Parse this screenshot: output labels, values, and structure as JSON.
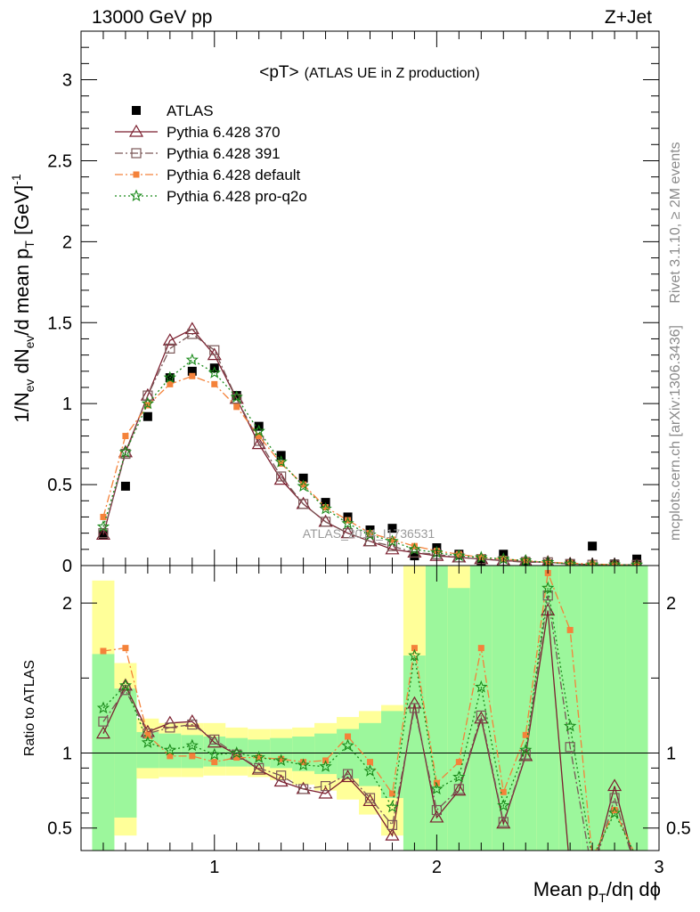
{
  "header": {
    "left": "13000 GeV pp",
    "right": "Z+Jet"
  },
  "side_labels": {
    "top": "Rivet 3.1.10, ≥ 2M events",
    "bottom": "mcplots.cern.ch [arXiv:1306.3436]"
  },
  "watermark": "ATLAS_2014_I1736531",
  "chart_data": [
    {
      "type": "scatter",
      "panel": "main",
      "title_main": "<pT>",
      "title_sub": "(ATLAS UE in Z production)",
      "ylabel_text": "1/N",
      "ylabel_sub1": "ev",
      "ylabel_mid": " dN",
      "ylabel_sub2": "ev",
      "ylabel_mid2": "/d mean p",
      "ylabel_sub3": "T",
      "ylabel_unit": " [GeV]",
      "ylabel_sup": "-1",
      "xlim": [
        0.4,
        3.0
      ],
      "ylim": [
        0,
        3.3
      ],
      "y_ticks": [
        0,
        0.5,
        1,
        1.5,
        2,
        2.5,
        3
      ],
      "y_tick_labels": [
        "0",
        "0.5",
        "1",
        "1.5",
        "2",
        "2.5",
        "3"
      ],
      "x": [
        0.5,
        0.6,
        0.7,
        0.8,
        0.9,
        1.0,
        1.1,
        1.2,
        1.3,
        1.4,
        1.5,
        1.6,
        1.7,
        1.8,
        1.9,
        2.0,
        2.1,
        2.2,
        2.3,
        2.4,
        2.5,
        2.6,
        2.7,
        2.8,
        2.9
      ],
      "series": [
        {
          "name": "ATLAS",
          "color": "#000000",
          "marker": "filled-square",
          "values": [
            0.19,
            0.49,
            0.92,
            1.16,
            1.2,
            1.22,
            1.05,
            0.86,
            0.68,
            0.54,
            0.39,
            0.3,
            0.22,
            0.23,
            0.06,
            0.11,
            0.07,
            0.03,
            0.07,
            0.025,
            0.01,
            0.01,
            0.12,
            0.01,
            0.04
          ]
        },
        {
          "name": "Pythia 6.428 370",
          "color": "#7b1f2f",
          "marker": "open-triangle",
          "dash": "",
          "values": [
            0.19,
            0.7,
            1.05,
            1.39,
            1.46,
            1.3,
            1.03,
            0.75,
            0.53,
            0.38,
            0.27,
            0.2,
            0.15,
            0.1,
            0.08,
            0.06,
            0.05,
            0.04,
            0.03,
            0.025,
            0.02,
            0.01,
            0.005,
            0.005,
            0.004
          ]
        },
        {
          "name": "Pythia 6.428 391",
          "color": "#7a5757",
          "marker": "open-square",
          "dash": "9 3 2 3",
          "values": [
            0.2,
            0.69,
            1.05,
            1.34,
            1.43,
            1.33,
            1.03,
            0.77,
            0.55,
            0.38,
            0.27,
            0.2,
            0.15,
            0.12,
            0.08,
            0.07,
            0.05,
            0.04,
            0.03,
            0.02,
            0.02,
            0.01,
            0.005,
            0.005,
            0.004
          ]
        },
        {
          "name": "Pythia 6.428 default",
          "color": "#f4823a",
          "marker": "filled-square-small",
          "dash": "9 3 2 3",
          "values": [
            0.3,
            0.8,
            0.99,
            1.12,
            1.17,
            1.12,
            0.98,
            0.8,
            0.63,
            0.5,
            0.36,
            0.28,
            0.2,
            0.16,
            0.12,
            0.09,
            0.07,
            0.05,
            0.04,
            0.03,
            0.02,
            0.015,
            0.01,
            0.005,
            0.004
          ]
        },
        {
          "name": "Pythia 6.428 pro-q2o",
          "color": "#1a8a1a",
          "marker": "open-star",
          "dash": "2 3",
          "values": [
            0.24,
            0.7,
            1.0,
            1.16,
            1.27,
            1.19,
            1.04,
            0.83,
            0.64,
            0.49,
            0.35,
            0.26,
            0.19,
            0.15,
            0.1,
            0.08,
            0.06,
            0.05,
            0.04,
            0.03,
            0.02,
            0.01,
            0.005,
            0.005,
            0.004
          ]
        }
      ]
    },
    {
      "type": "line",
      "panel": "ratio",
      "ylabel": "Ratio to ATLAS",
      "xlabel_text": "Mean p",
      "xlabel_sub": "T",
      "xlabel_rest": "/dη dϕ",
      "xlim": [
        0.4,
        3.0
      ],
      "ylim": [
        0.35,
        2.25
      ],
      "x_ticks": [
        1,
        2,
        3
      ],
      "x_tick_labels": [
        "1",
        "2",
        "3"
      ],
      "y_ticks": [
        0.5,
        1,
        2
      ],
      "y_tick_labels": [
        "0.5",
        "1",
        "2"
      ],
      "x": [
        0.5,
        0.6,
        0.7,
        0.8,
        0.9,
        1.0,
        1.1,
        1.2,
        1.3,
        1.4,
        1.5,
        1.6,
        1.7,
        1.8,
        1.9,
        2.0,
        2.1,
        2.2,
        2.3,
        2.4,
        2.5,
        2.6,
        2.7,
        2.8,
        2.9
      ],
      "band_yellow": [
        [
          0.35,
          2.15
        ],
        [
          0.45,
          1.6
        ],
        [
          0.83,
          1.23
        ],
        [
          0.84,
          1.2
        ],
        [
          0.84,
          1.2
        ],
        [
          0.85,
          1.2
        ],
        [
          0.85,
          1.17
        ],
        [
          0.84,
          1.16
        ],
        [
          0.82,
          1.16
        ],
        [
          0.79,
          1.17
        ],
        [
          0.75,
          1.2
        ],
        [
          0.69,
          1.24
        ],
        [
          0.59,
          1.28
        ],
        [
          0.45,
          1.32
        ],
        [
          0.35,
          2.25
        ],
        [
          0.35,
          2.25
        ],
        [
          0.35,
          2.25
        ],
        [
          0.35,
          2.25
        ],
        [
          0.35,
          2.25
        ],
        [
          0.35,
          2.25
        ],
        [
          0.35,
          2.25
        ],
        [
          0.35,
          2.25
        ],
        [
          0.35,
          2.25
        ],
        [
          0.35,
          2.25
        ],
        [
          0.35,
          2.25
        ]
      ],
      "band_green": [
        [
          0.35,
          1.66
        ],
        [
          0.57,
          1.43
        ],
        [
          0.9,
          1.14
        ],
        [
          0.9,
          1.13
        ],
        [
          0.9,
          1.12
        ],
        [
          0.91,
          1.11
        ],
        [
          0.91,
          1.1
        ],
        [
          0.91,
          1.09
        ],
        [
          0.9,
          1.1
        ],
        [
          0.88,
          1.11
        ],
        [
          0.86,
          1.13
        ],
        [
          0.83,
          1.16
        ],
        [
          0.78,
          1.2
        ],
        [
          0.7,
          1.28
        ],
        [
          0.35,
          1.65
        ],
        [
          0.35,
          2.25
        ],
        [
          0.35,
          2.1
        ],
        [
          0.35,
          2.25
        ],
        [
          0.35,
          2.25
        ],
        [
          0.35,
          2.25
        ],
        [
          0.35,
          2.25
        ],
        [
          0.35,
          2.25
        ],
        [
          0.35,
          2.25
        ],
        [
          0.35,
          2.25
        ],
        [
          0.35,
          2.25
        ]
      ],
      "series": [
        {
          "name": "Pythia 6.428 370",
          "color": "#7b1f2f",
          "marker": "open-triangle",
          "dash": "",
          "values": [
            1.13,
            1.45,
            1.14,
            1.2,
            1.21,
            1.07,
            0.99,
            0.89,
            0.81,
            0.76,
            0.73,
            0.84,
            0.68,
            0.45,
            1.33,
            0.57,
            0.75,
            1.23,
            0.53,
            0.98,
            1.95,
            0.2,
            0.2,
            0.78,
            0.2
          ]
        },
        {
          "name": "Pythia 6.428 391",
          "color": "#7a5757",
          "marker": "open-square",
          "dash": "9 3 2 3",
          "values": [
            1.21,
            1.42,
            1.13,
            1.17,
            1.19,
            1.09,
            0.99,
            0.9,
            0.85,
            0.76,
            0.78,
            0.86,
            0.7,
            0.52,
            1.3,
            0.62,
            0.76,
            1.25,
            0.54,
            0.99,
            2.05,
            1.04,
            0.2,
            0.7,
            0.2
          ]
        },
        {
          "name": "Pythia 6.428 default",
          "color": "#f4823a",
          "marker": "filled-square-small",
          "dash": "9 3 2 3",
          "values": [
            1.68,
            1.7,
            1.12,
            0.98,
            0.98,
            0.94,
            0.97,
            0.97,
            0.96,
            0.94,
            0.95,
            1.11,
            0.94,
            0.73,
            1.7,
            0.8,
            0.94,
            1.7,
            0.74,
            1.12,
            2.2,
            1.82,
            0.3,
            0.62,
            0.3
          ]
        },
        {
          "name": "Pythia 6.428 pro-q2o",
          "color": "#1a8a1a",
          "marker": "open-star",
          "dash": "2 3",
          "values": [
            1.3,
            1.45,
            1.07,
            1.02,
            1.05,
            0.99,
            1.0,
            0.97,
            0.95,
            0.92,
            0.91,
            1.05,
            0.88,
            0.64,
            1.65,
            0.76,
            0.84,
            1.44,
            0.65,
            1.02,
            2.1,
            1.18,
            0.3,
            0.6,
            0.3
          ]
        }
      ]
    }
  ]
}
